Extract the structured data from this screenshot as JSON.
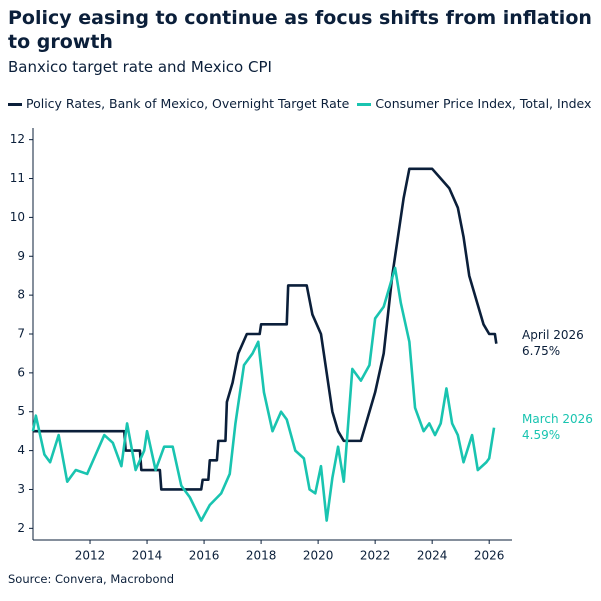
{
  "chart_data": {
    "type": "line",
    "title": "Policy easing to continue as focus shifts from inflation to growth",
    "subtitle": "Banxico target rate and Mexico CPI",
    "source": "Source: Convera, Macrobond",
    "xlim": [
      2010,
      2026.8
    ],
    "xticks": [
      2012,
      2014,
      2016,
      2018,
      2020,
      2022,
      2024,
      2026
    ],
    "ylim": [
      1.7,
      12.3
    ],
    "yticks": [
      2,
      3,
      4,
      5,
      6,
      7,
      8,
      9,
      10,
      11,
      12
    ],
    "grid": false,
    "series": [
      {
        "name": "Policy Rates, Bank of Mexico, Overnight Target Rate",
        "color": "#0b1f3a",
        "x": [
          2010,
          2013.2,
          2013.25,
          2013.75,
          2013.8,
          2014.45,
          2014.5,
          2015.9,
          2015.95,
          2016.15,
          2016.2,
          2016.45,
          2016.5,
          2016.75,
          2016.8,
          2017.0,
          2017.2,
          2017.5,
          2017.95,
          2018.0,
          2018.9,
          2018.95,
          2019.6,
          2019.8,
          2020.1,
          2020.3,
          2020.5,
          2020.7,
          2020.9,
          2021.0,
          2021.5,
          2021.7,
          2022.0,
          2022.3,
          2022.6,
          2022.8,
          2023.0,
          2023.2,
          2024.0,
          2024.3,
          2024.6,
          2024.9,
          2025.1,
          2025.3,
          2025.6,
          2025.8,
          2026.0,
          2026.2,
          2026.25
        ],
        "values": [
          4.5,
          4.5,
          4.0,
          4.0,
          3.5,
          3.5,
          3.0,
          3.0,
          3.25,
          3.25,
          3.75,
          3.75,
          4.25,
          4.25,
          5.25,
          5.75,
          6.5,
          7.0,
          7.0,
          7.25,
          7.25,
          8.25,
          8.25,
          7.5,
          7.0,
          6.0,
          5.0,
          4.5,
          4.25,
          4.25,
          4.25,
          4.75,
          5.5,
          6.5,
          8.5,
          9.5,
          10.5,
          11.25,
          11.25,
          11.0,
          10.75,
          10.25,
          9.5,
          8.5,
          7.75,
          7.25,
          7.0,
          7.0,
          6.75
        ]
      },
      {
        "name": "Consumer Price Index, Total, Index",
        "color": "#19c4b0",
        "x": [
          2010.0,
          2010.1,
          2010.4,
          2010.6,
          2010.9,
          2011.2,
          2011.5,
          2011.9,
          2012.2,
          2012.5,
          2012.8,
          2013.1,
          2013.3,
          2013.6,
          2013.9,
          2014.0,
          2014.3,
          2014.6,
          2014.9,
          2015.2,
          2015.5,
          2015.9,
          2016.2,
          2016.6,
          2016.9,
          2017.1,
          2017.4,
          2017.7,
          2017.9,
          2018.1,
          2018.4,
          2018.7,
          2018.9,
          2019.2,
          2019.5,
          2019.7,
          2019.9,
          2020.1,
          2020.3,
          2020.5,
          2020.7,
          2020.9,
          2021.2,
          2021.5,
          2021.8,
          2022.0,
          2022.3,
          2022.5,
          2022.7,
          2022.9,
          2023.2,
          2023.4,
          2023.7,
          2023.9,
          2024.1,
          2024.3,
          2024.5,
          2024.7,
          2024.9,
          2025.1,
          2025.4,
          2025.6,
          2025.9,
          2026.0,
          2026.17
        ],
        "values": [
          4.5,
          4.9,
          3.9,
          3.7,
          4.4,
          3.2,
          3.5,
          3.4,
          3.9,
          4.4,
          4.2,
          3.6,
          4.7,
          3.5,
          4.0,
          4.5,
          3.5,
          4.1,
          4.1,
          3.1,
          2.8,
          2.2,
          2.6,
          2.9,
          3.4,
          4.7,
          6.2,
          6.5,
          6.8,
          5.5,
          4.5,
          5.0,
          4.8,
          4.0,
          3.8,
          3.0,
          2.9,
          3.6,
          2.2,
          3.3,
          4.1,
          3.2,
          6.1,
          5.8,
          6.2,
          7.4,
          7.7,
          8.2,
          8.7,
          7.8,
          6.8,
          5.1,
          4.5,
          4.7,
          4.4,
          4.7,
          5.6,
          4.7,
          4.4,
          3.7,
          4.4,
          3.5,
          3.7,
          3.8,
          4.59
        ]
      }
    ],
    "annotations": [
      {
        "lines": [
          "April 2026",
          "6.75%"
        ],
        "color": "#0b1f3a"
      },
      {
        "lines": [
          "March 2026",
          "4.59%"
        ],
        "color": "#19c4b0"
      }
    ]
  }
}
